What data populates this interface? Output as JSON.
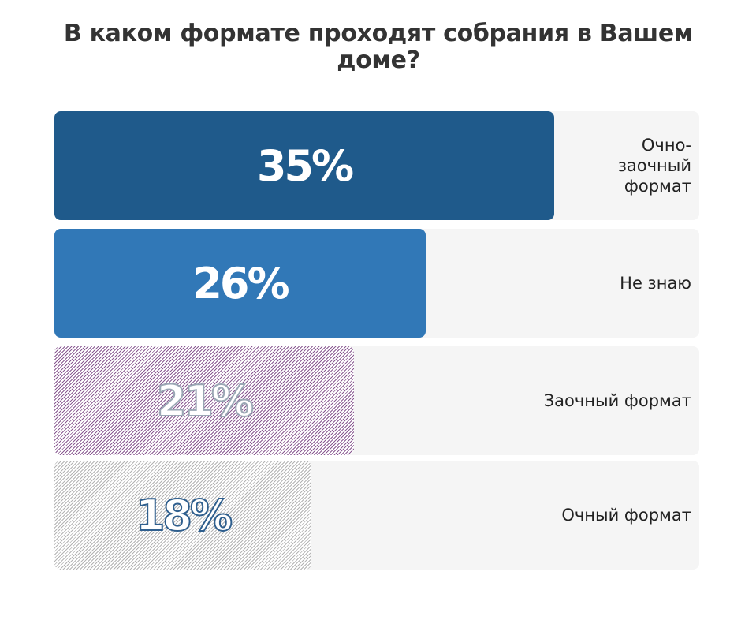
{
  "title": "В каком формате проходят собрания в Вашем доме?",
  "chart_data": {
    "type": "bar",
    "orientation": "horizontal",
    "title": "В каком формате проходят собрания в Вашем доме?",
    "categories": [
      "Очно-заочный формат",
      "Не знаю",
      "Заочный формат",
      "Очный формат"
    ],
    "values": [
      35,
      26,
      21,
      18
    ],
    "value_labels": [
      "35%",
      "26%",
      "21%",
      "18%"
    ],
    "label_lines": [
      [
        "Очно-",
        "заочный",
        "формат"
      ],
      [
        "Не знаю"
      ],
      [
        "Заочный формат"
      ],
      [
        "Очный формат"
      ]
    ],
    "unit": "%",
    "xlim": [
      0,
      45
    ],
    "grid": false,
    "legend": "none",
    "colors": [
      "#1f5a8b",
      "#3178b7",
      "#8a5a92",
      "#b4b4b4"
    ],
    "fill_styles": [
      "solid",
      "solid",
      "hatched",
      "hatched"
    ]
  }
}
